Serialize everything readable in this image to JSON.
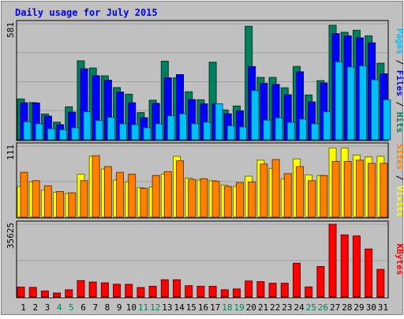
{
  "colors": {
    "background": "#c0c0c0",
    "title": "#0000ff",
    "hits": "#00805c",
    "files": "#0000ff",
    "pages": "#00c0ff",
    "visits": "#ffff00",
    "sites": "#ff8000",
    "kbytes": "#ff0000",
    "weekend_label": "#00805c",
    "weekday_label": "#000000",
    "panel_border": "#000000"
  },
  "chart_data": {
    "type": "bar",
    "title": "Daily usage for July 2015",
    "categories": [
      "1",
      "2",
      "3",
      "4",
      "5",
      "6",
      "7",
      "8",
      "9",
      "10",
      "11",
      "12",
      "13",
      "14",
      "15",
      "16",
      "17",
      "18",
      "19",
      "20",
      "21",
      "22",
      "23",
      "24",
      "25",
      "26",
      "27",
      "28",
      "29",
      "30",
      "31"
    ],
    "weekend_days": [
      "4",
      "5",
      "11",
      "12",
      "18",
      "19",
      "25",
      "26"
    ],
    "panels": [
      {
        "id": "top",
        "max_label": "581",
        "ymax": 581,
        "label_parts": [
          {
            "text": "Pages",
            "color": "#00c0ff"
          },
          {
            "text": " / ",
            "color": "#000000"
          },
          {
            "text": "Files",
            "color": "#0000ff"
          },
          {
            "text": " / ",
            "color": "#000000"
          },
          {
            "text": "Hits",
            "color": "#00805c"
          }
        ],
        "series": [
          {
            "name": "Hits",
            "color": "#00805c",
            "values": [
              204,
              186,
              129,
              88,
              165,
              395,
              359,
              320,
              261,
              228,
              136,
              198,
              393,
              310,
              240,
              200,
              388,
              149,
              169,
              568,
              312,
              312,
              260,
              367,
              224,
              296,
              573,
              538,
              548,
              520,
              383
            ]
          },
          {
            "name": "Files",
            "color": "#0000ff",
            "values": [
              185,
              184,
              118,
              75,
              138,
              355,
              320,
              298,
              239,
              185,
              110,
              182,
              310,
              326,
              201,
              180,
              180,
              130,
              145,
              366,
              282,
              277,
              225,
              340,
              189,
              284,
              531,
              520,
              510,
              485,
              330
            ]
          },
          {
            "name": "Pages",
            "color": "#00c0ff",
            "values": [
              90,
              80,
              55,
              50,
              60,
              140,
              96,
              112,
              80,
              75,
              60,
              80,
              120,
              130,
              80,
              88,
              180,
              70,
              64,
              246,
              98,
              110,
              87,
              103,
              80,
              140,
              390,
              364,
              370,
              300,
              200
            ]
          }
        ]
      },
      {
        "id": "middle",
        "max_label": "111",
        "ymax": 111,
        "label_parts": [
          {
            "text": "Sites",
            "color": "#ff8000"
          },
          {
            "text": " / ",
            "color": "#000000"
          },
          {
            "text": "Visits",
            "color": "#ffff00"
          }
        ],
        "series": [
          {
            "name": "Visits",
            "color": "#ffff00",
            "values": [
              48,
              55,
              42,
              39,
              37,
              67,
              95,
              75,
              58,
              55,
              46,
              47,
              67,
              95,
              61,
              58,
              57,
              50,
              48,
              64,
              89,
              76,
              60,
              91,
              66,
              65,
              108,
              108,
              97,
              94,
              95
            ]
          },
          {
            "name": "Sites",
            "color": "#ff8000",
            "values": [
              70,
              57,
              49,
              40,
              38,
              57,
              96,
              79,
              70,
              67,
              45,
              65,
              71,
              88,
              59,
              60,
              56,
              48,
              54,
              55,
              83,
              90,
              68,
              79,
              57,
              65,
              87,
              87,
              89,
              84,
              84
            ]
          }
        ]
      },
      {
        "id": "bottom",
        "max_label": "35625",
        "ymax": 35625,
        "label_parts": [
          {
            "text": "KBytes",
            "color": "#ff0000"
          }
        ],
        "series": [
          {
            "name": "KBytes",
            "color": "#ff0000",
            "values": [
              4800,
              4650,
              2900,
              1900,
              3500,
              8000,
              7300,
              6900,
              6200,
              6150,
              4600,
              5200,
              8400,
              8400,
              5500,
              5200,
              5200,
              3500,
              3900,
              7800,
              7500,
              6700,
              6700,
              16500,
              4900,
              14900,
              35625,
              30400,
              29900,
              23500,
              13500
            ]
          }
        ]
      }
    ]
  }
}
